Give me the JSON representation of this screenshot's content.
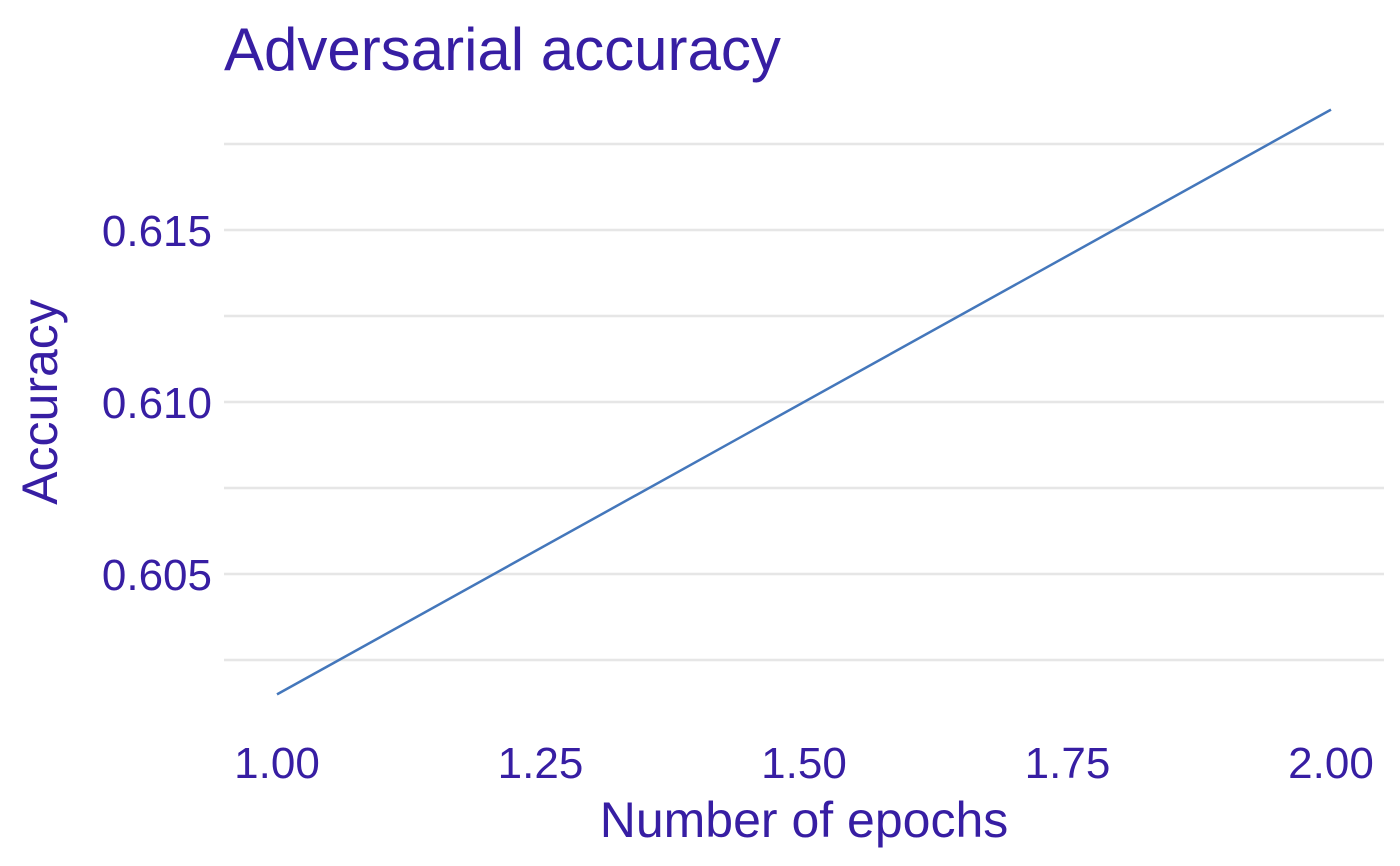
{
  "chart_data": {
    "type": "line",
    "title": "Adversarial accuracy",
    "xlabel": "Number of epochs",
    "ylabel": "Accuracy",
    "x": [
      1.0,
      2.0
    ],
    "series": [
      {
        "values": [
          0.6015,
          0.6185
        ],
        "color": "#4477bb"
      }
    ],
    "xlim": [
      1.0,
      2.0
    ],
    "ylim": [
      0.6,
      0.62
    ],
    "x_ticks": [
      1.0,
      1.25,
      1.5,
      1.75,
      2.0
    ],
    "x_tick_labels": [
      "1.00",
      "1.25",
      "1.50",
      "1.75",
      "2.00"
    ],
    "y_ticks": [
      0.605,
      0.61,
      0.615
    ],
    "y_tick_labels": [
      "0.605",
      "0.610",
      "0.615"
    ],
    "y_minor_gridlines": [
      0.6025,
      0.6075,
      0.6125,
      0.6175
    ],
    "grid": true,
    "legend": "none"
  },
  "colors": {
    "text": "#371ea3",
    "grid": "#e6e6e6",
    "line": "#4477bb",
    "background": "#ffffff"
  }
}
